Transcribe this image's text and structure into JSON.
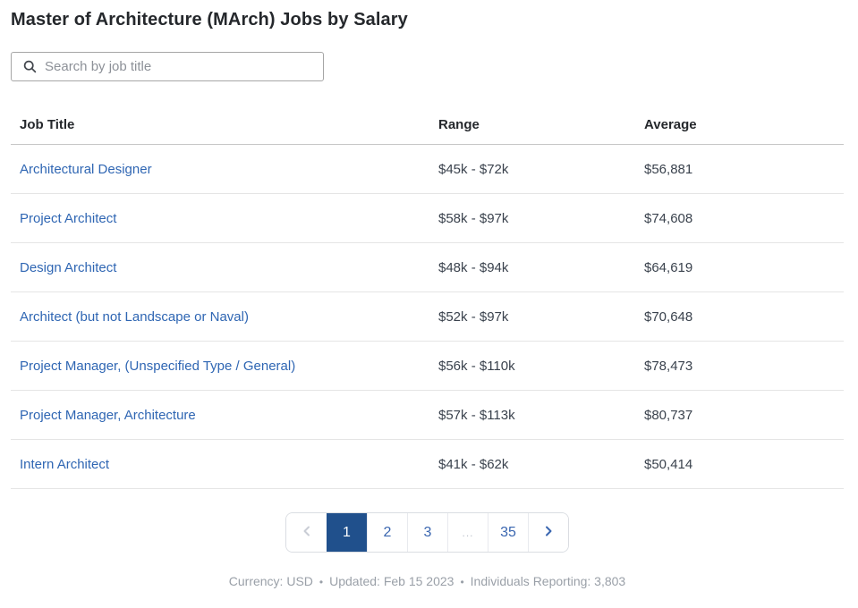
{
  "page": {
    "title": "Master of Architecture (MArch) Jobs by Salary"
  },
  "search": {
    "placeholder": "Search by job title",
    "value": "",
    "icon": "magnifier"
  },
  "table": {
    "columns": [
      "Job Title",
      "Range",
      "Average"
    ],
    "rows": [
      {
        "job_title": "Architectural Designer",
        "range": "$45k - $72k",
        "average": "$56,881"
      },
      {
        "job_title": "Project Architect",
        "range": "$58k - $97k",
        "average": "$74,608"
      },
      {
        "job_title": "Design Architect",
        "range": "$48k - $94k",
        "average": "$64,619"
      },
      {
        "job_title": "Architect (but not Landscape or Naval)",
        "range": "$52k - $97k",
        "average": "$70,648"
      },
      {
        "job_title": "Project Manager, (Unspecified Type / General)",
        "range": "$56k - $110k",
        "average": "$78,473"
      },
      {
        "job_title": "Project Manager, Architecture",
        "range": "$57k - $113k",
        "average": "$80,737"
      },
      {
        "job_title": "Intern Architect",
        "range": "$41k - $62k",
        "average": "$50,414"
      }
    ]
  },
  "pagination": {
    "prev_icon": "chevron-left",
    "next_icon": "chevron-right",
    "pages": [
      "1",
      "2",
      "3",
      "...",
      "35"
    ],
    "active_page": "1",
    "ellipsis": "..."
  },
  "footer": {
    "items": [
      "Currency: USD",
      "Updated: Feb 15 2023",
      "Individuals Reporting: 3,803"
    ],
    "separator": "•"
  },
  "colors": {
    "link_blue": "#2f66b3",
    "active_page_bg": "#20508c",
    "heading_text": "#25282c",
    "body_text": "#3a424d",
    "muted_text": "#9aa0a8"
  }
}
